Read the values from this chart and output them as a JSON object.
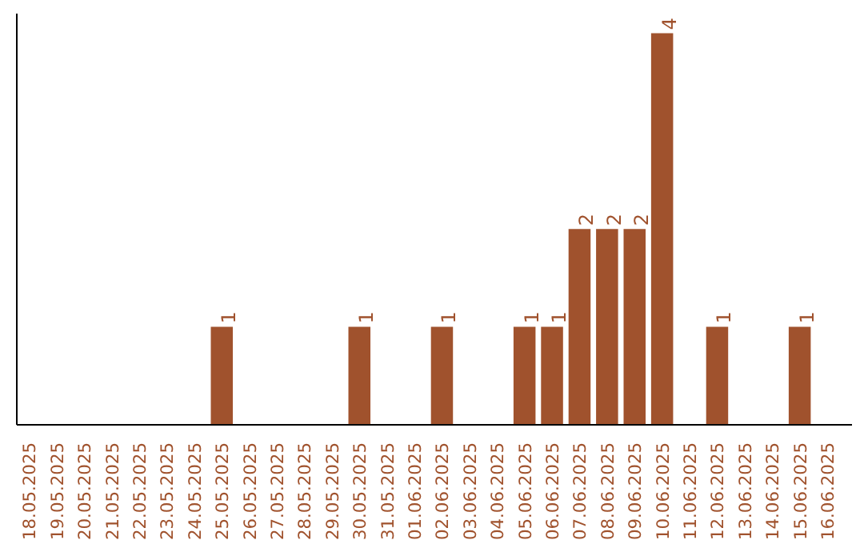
{
  "chart_data": {
    "type": "bar",
    "categories": [
      "18.05.2025",
      "19.05.2025",
      "20.05.2025",
      "21.05.2025",
      "22.05.2025",
      "23.05.2025",
      "24.05.2025",
      "25.05.2025",
      "26.05.2025",
      "27.05.2025",
      "28.05.2025",
      "29.05.2025",
      "30.05.2025",
      "31.05.2025",
      "01.06.2025",
      "02.06.2025",
      "03.06.2025",
      "04.06.2025",
      "05.06.2025",
      "06.06.2025",
      "07.06.2025",
      "08.06.2025",
      "09.06.2025",
      "10.06.2025",
      "11.06.2025",
      "12.06.2025",
      "13.06.2025",
      "14.06.2025",
      "15.06.2025",
      "16.06.2025"
    ],
    "values": [
      0,
      0,
      0,
      0,
      0,
      0,
      0,
      1,
      0,
      0,
      0,
      0,
      1,
      0,
      0,
      1,
      0,
      0,
      1,
      1,
      2,
      2,
      2,
      4,
      0,
      1,
      0,
      0,
      1,
      0
    ],
    "value_labels": [
      null,
      null,
      null,
      null,
      null,
      null,
      null,
      "1",
      null,
      null,
      null,
      null,
      "1",
      null,
      null,
      "1",
      null,
      null,
      "1",
      "1",
      "2",
      "2",
      "2",
      "4",
      null,
      "1",
      null,
      null,
      "1",
      null
    ],
    "color": "#a0522d",
    "ylim": [
      0,
      4.2
    ],
    "tick_labels": "x",
    "grid": false
  }
}
